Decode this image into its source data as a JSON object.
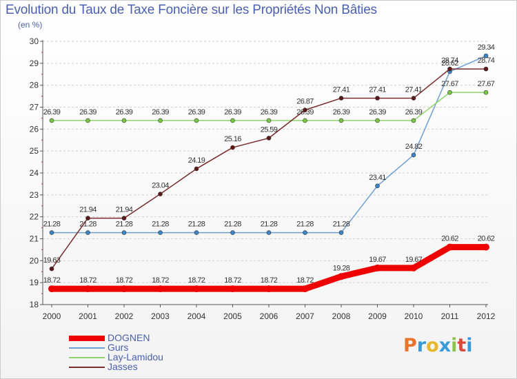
{
  "title": "Evolution du Taux de Taxe Foncière sur les Propriétés Non Bâties",
  "subtitle": "(en %)",
  "logo": {
    "text": "Proxiti",
    "colors": [
      "#e8732a",
      "#3a9ad9",
      "#e8b82a",
      "#3a9ad9",
      "#8bc34a",
      "#d94a3a",
      "#3a9ad9"
    ]
  },
  "chart_data": {
    "type": "line",
    "title": "Evolution du Taux de Taxe Foncière sur les Propriétés Non Bâties",
    "ylabel": "(en %)",
    "xlabel": "",
    "x": [
      "2000",
      "2001",
      "2002",
      "2003",
      "2004",
      "2005",
      "2006",
      "2007",
      "2008",
      "2009",
      "2010",
      "2011",
      "2012"
    ],
    "y_ticks": [
      18,
      19,
      20,
      21,
      22,
      23,
      24,
      25,
      26,
      27,
      28,
      29,
      30
    ],
    "ylim": [
      18,
      30
    ],
    "grid": "horizontal dashed",
    "legend_position": "bottom-left",
    "series": [
      {
        "name": "DOGNEN",
        "color": "#ee0000",
        "width": 9,
        "marker_color": "#ee0000",
        "values": [
          18.72,
          18.72,
          18.72,
          18.72,
          18.72,
          18.72,
          18.72,
          18.72,
          19.28,
          19.67,
          19.67,
          20.62,
          20.62
        ],
        "labels": [
          "18.72",
          "18.72",
          "18.72",
          "18.72",
          "18.72",
          "18.72",
          "18.72",
          "18.72",
          "19.28",
          "19.67",
          "19.67",
          "20.62",
          "20.62"
        ]
      },
      {
        "name": "Gurs",
        "color": "#6b9fd4",
        "width": 1.5,
        "marker_color": "#3d86c9",
        "values": [
          21.28,
          21.28,
          21.28,
          21.28,
          21.28,
          21.28,
          21.28,
          21.28,
          21.28,
          23.41,
          24.82,
          28.62,
          29.34
        ],
        "labels": [
          "21.28",
          "21.28",
          "21.28",
          "21.28",
          "21.28",
          "21.28",
          "21.28",
          "21.28",
          "21.28",
          "23.41",
          "24.82",
          "28.62",
          "29.34"
        ]
      },
      {
        "name": "Lay-Lamidou",
        "color": "#8fd46a",
        "width": 1.5,
        "marker_color": "#7ac943",
        "values": [
          26.39,
          26.39,
          26.39,
          26.39,
          26.39,
          26.39,
          26.39,
          26.39,
          26.39,
          26.39,
          26.39,
          27.67,
          27.67
        ],
        "labels": [
          "26.39",
          "26.39",
          "26.39",
          "26.39",
          "26.39",
          "26.39",
          "26.39",
          "26.39",
          "26.39",
          "26.39",
          "26.39",
          "27.67",
          "27.67"
        ]
      },
      {
        "name": "Jasses",
        "color": "#7a2a2a",
        "width": 1.5,
        "marker_color": "#5e1818",
        "values": [
          19.63,
          21.94,
          21.94,
          23.04,
          24.19,
          25.16,
          25.59,
          26.87,
          27.41,
          27.41,
          27.41,
          28.74,
          28.74
        ],
        "labels": [
          "19.63",
          "21.94",
          "21.94",
          "23.04",
          "24.19",
          "25.16",
          "25.59",
          "26.87",
          "27.41",
          "27.41",
          "27.41",
          "28.74",
          "28.74"
        ]
      }
    ]
  }
}
